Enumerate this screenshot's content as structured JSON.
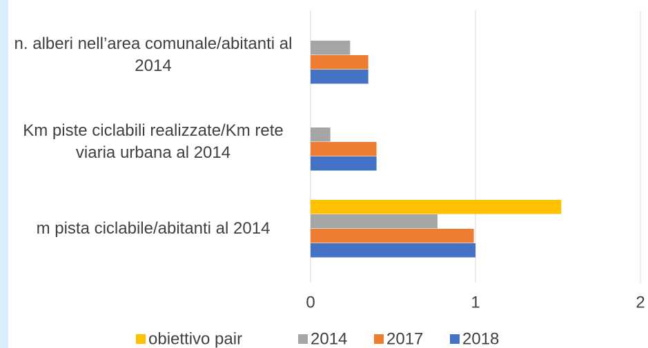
{
  "chart_data": {
    "type": "bar",
    "orientation": "horizontal",
    "categories": [
      "n. alberi nell’area comunale/abitanti al 2014",
      "Km piste ciclabili realizzate/Km rete viaria urbana al 2014",
      "m pista ciclabile/abitanti al 2014"
    ],
    "series": [
      {
        "name": "obiettivo pair",
        "color": "#FFC000",
        "values": [
          null,
          null,
          1.52
        ]
      },
      {
        "name": "2014",
        "color": "#A5A5A5",
        "values": [
          0.24,
          0.12,
          0.77
        ]
      },
      {
        "name": "2017",
        "color": "#ED7D31",
        "values": [
          0.35,
          0.4,
          0.99
        ]
      },
      {
        "name": "2018",
        "color": "#4472C4",
        "values": [
          0.35,
          0.4,
          1.0
        ]
      }
    ],
    "xlim": [
      0,
      2
    ],
    "xticks": [
      0,
      1,
      2
    ],
    "grid": true,
    "legend": "bottom"
  }
}
